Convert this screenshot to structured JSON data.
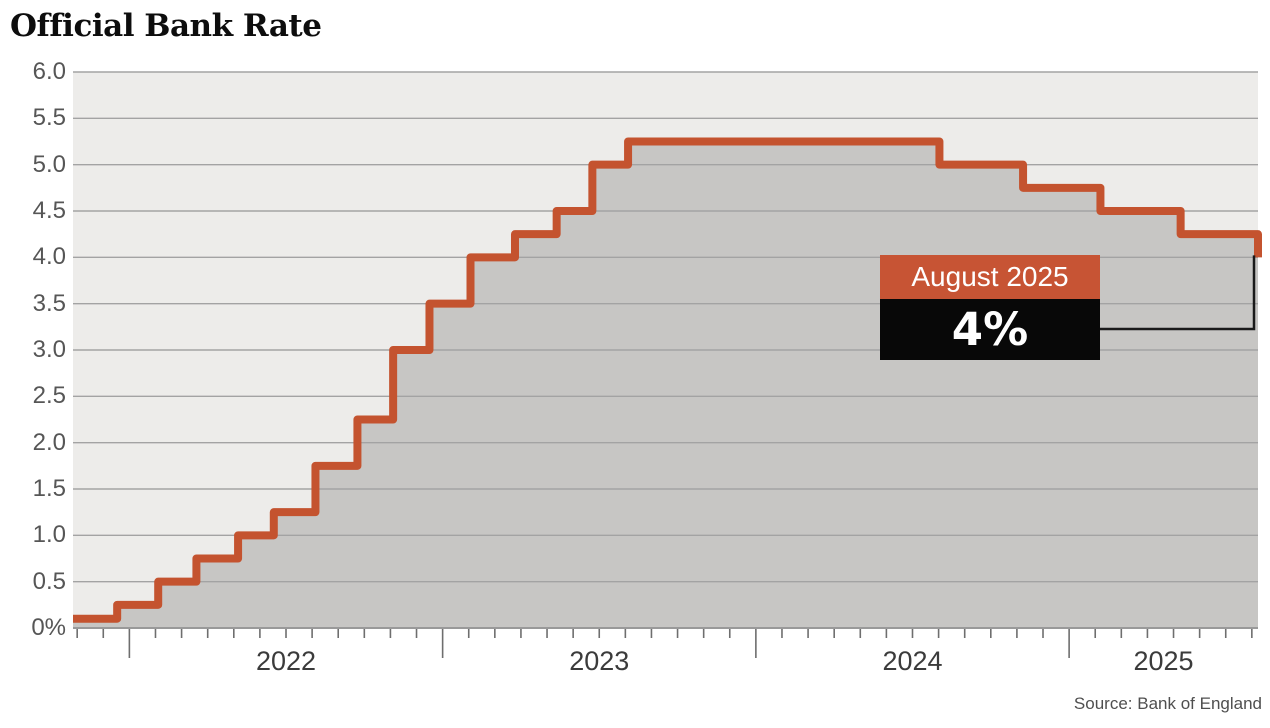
{
  "chart_data": {
    "type": "area",
    "subtype": "step",
    "title": "Official Bank Rate",
    "source": "Source: Bank of England",
    "ylabel": "",
    "xlabel": "",
    "y_unit": "percent",
    "ylim": [
      0,
      6.0
    ],
    "y_tick_labels": [
      "6.0",
      "5.5",
      "5.0",
      "4.5",
      "4.0",
      "3.5",
      "3.0",
      "2.5",
      "2.0",
      "1.5",
      "1.0",
      "0.5",
      "0%"
    ],
    "y_tick_values": [
      6.0,
      5.5,
      5.0,
      4.5,
      4.0,
      3.5,
      3.0,
      2.5,
      2.0,
      1.5,
      1.0,
      0.5,
      0
    ],
    "x_year_labels": [
      "2022",
      "2023",
      "2024",
      "2025"
    ],
    "x_range_decimal_years": [
      2021.82,
      2025.603
    ],
    "grid": "horizontal",
    "minor_ticks": "monthly",
    "series": [
      {
        "name": "Official Bank Rate",
        "points": [
          {
            "date": "Nov 2021",
            "t": 2021.82,
            "rate": 0.1
          },
          {
            "date": "Dec 2021",
            "t": 2021.961,
            "rate": 0.25
          },
          {
            "date": "Feb 2022",
            "t": 2022.092,
            "rate": 0.5
          },
          {
            "date": "Mar 2022",
            "t": 2022.214,
            "rate": 0.75
          },
          {
            "date": "May 2022",
            "t": 2022.347,
            "rate": 1.0
          },
          {
            "date": "Jun 2022",
            "t": 2022.461,
            "rate": 1.25
          },
          {
            "date": "Aug 2022",
            "t": 2022.594,
            "rate": 1.75
          },
          {
            "date": "Sep 2022",
            "t": 2022.728,
            "rate": 2.25
          },
          {
            "date": "Nov 2022",
            "t": 2022.842,
            "rate": 3.0
          },
          {
            "date": "Dec 2022",
            "t": 2022.958,
            "rate": 3.5
          },
          {
            "date": "Feb 2023",
            "t": 2023.089,
            "rate": 4.0
          },
          {
            "date": "Mar 2023",
            "t": 2023.231,
            "rate": 4.25
          },
          {
            "date": "May 2023",
            "t": 2023.364,
            "rate": 4.5
          },
          {
            "date": "Jun 2023",
            "t": 2023.478,
            "rate": 5.0
          },
          {
            "date": "Aug 2023",
            "t": 2023.592,
            "rate": 5.25
          },
          {
            "date": "Aug 2024",
            "t": 2024.586,
            "rate": 5.0
          },
          {
            "date": "Nov 2024",
            "t": 2024.853,
            "rate": 4.75
          },
          {
            "date": "Feb 2025",
            "t": 2025.1,
            "rate": 4.5
          },
          {
            "date": "May 2025",
            "t": 2025.356,
            "rate": 4.25
          },
          {
            "date": "Aug 2025",
            "t": 2025.603,
            "rate": 4.0
          }
        ]
      }
    ],
    "annotation": {
      "label": "August 2025",
      "value": "4%"
    },
    "colors": {
      "line": "#c4532f",
      "area_fill": "#c7c6c4",
      "plot_background": "#edecea",
      "gridline": "#a3a3a3",
      "axis_line": "#999999",
      "tick": "#6e6e6e",
      "annotation_label_bg": "#c75434",
      "annotation_value_bg": "#080808",
      "annotation_text": "#ffffff",
      "connector": "#1a1a1a"
    }
  }
}
